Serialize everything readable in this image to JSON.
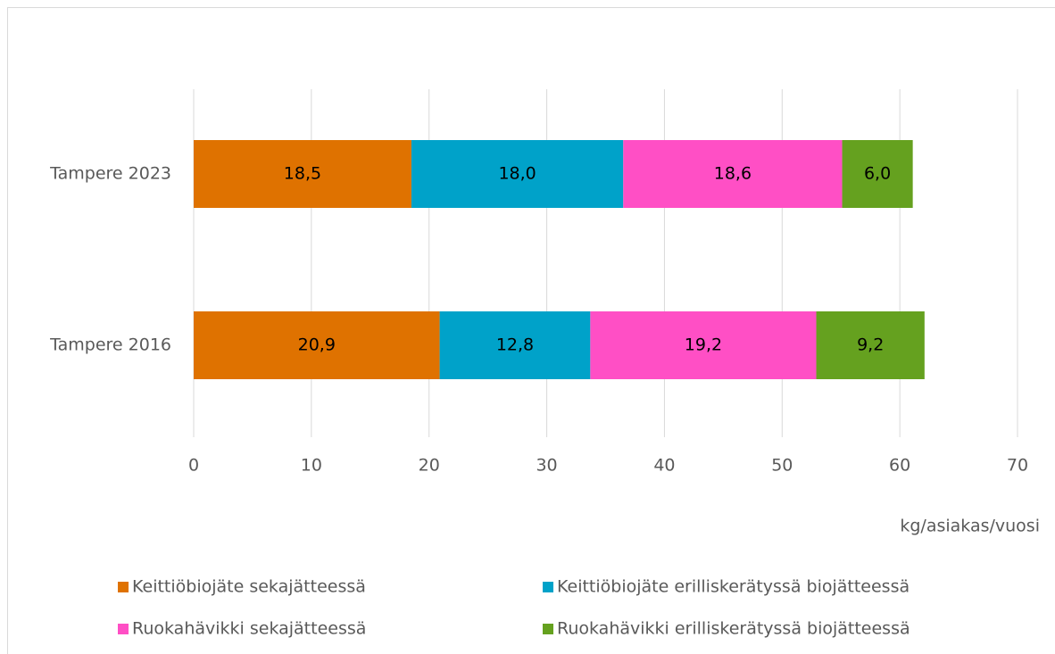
{
  "chart_data": {
    "type": "stacked-barh",
    "categories": [
      "Tampere 2023",
      "Tampere 2016"
    ],
    "series": [
      {
        "name": "Keittiöbiojäte sekajätteessä",
        "color": "#df7200",
        "values": [
          18.5,
          20.9
        ],
        "value_labels": [
          "18,5",
          "20,9"
        ]
      },
      {
        "name": "Keittiöbiojäte erilliskerätyssä biojätteessä",
        "color": "#00a2c9",
        "values": [
          18.0,
          12.8
        ],
        "value_labels": [
          "18,0",
          "12,8"
        ]
      },
      {
        "name": "Ruokahävikki sekajätteessä",
        "color": "#ff4fc5",
        "values": [
          18.6,
          19.2
        ],
        "value_labels": [
          "18,6",
          "19,2"
        ]
      },
      {
        "name": "Ruokahävikki erilliskerätyssä biojätteessä",
        "color": "#65a11f",
        "values": [
          6.0,
          9.2
        ],
        "value_labels": [
          "6,0",
          "9,2"
        ]
      }
    ],
    "xlabel": "kg/asiakas/vuosi",
    "xlim": [
      0,
      70
    ],
    "xticks": [
      0,
      10,
      20,
      30,
      40,
      50,
      60,
      70
    ],
    "grid": true,
    "legend": "bottom"
  }
}
